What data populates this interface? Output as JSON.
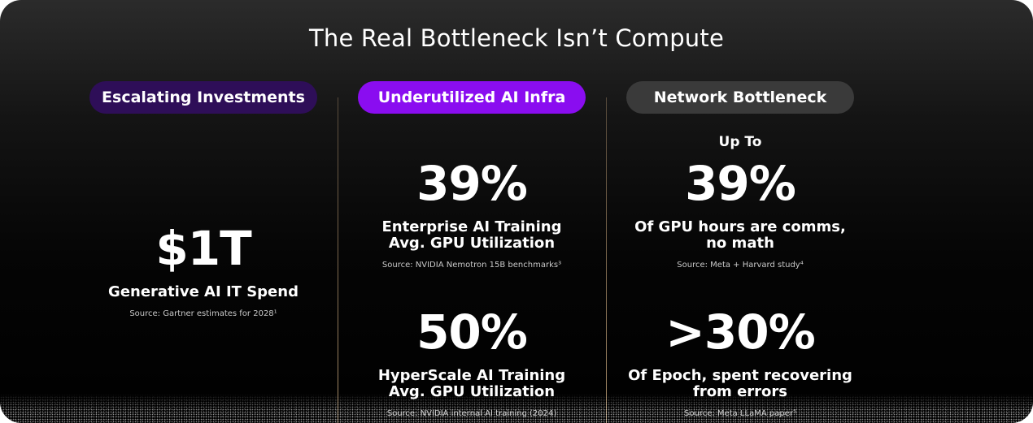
{
  "title": "The Real Bottleneck Isn’t Compute",
  "columns": [
    {
      "pill": "Escalating Investments",
      "stats": [
        {
          "value": "$1T",
          "label": "Generative AI IT Spend",
          "source": "Source: Gartner estimates for 2028¹"
        }
      ]
    },
    {
      "pill": "Underutilized AI Infra",
      "stats": [
        {
          "value": "39%",
          "label_line1": "Enterprise AI Training",
          "label_line2": "Avg. GPU Utilization",
          "source": "Source: NVIDIA Nemotron 15B benchmarks³"
        },
        {
          "value": "50%",
          "label_line1": "HyperScale AI Training",
          "label_line2": "Avg. GPU Utilization",
          "source": "Source: NVIDIA internal AI training (2024)"
        }
      ]
    },
    {
      "pill": "Network Bottleneck",
      "prefix": "Up To",
      "stats": [
        {
          "value": "39%",
          "label_line1": "Of GPU hours are comms,",
          "label_line2": "no math",
          "source": "Source: Meta + Harvard study⁴"
        },
        {
          "value": ">30%",
          "label_line1": "Of Epoch, spent recovering",
          "label_line2": "from errors",
          "source": "Source: Meta LLaMA paper⁵"
        }
      ]
    }
  ],
  "colors": {
    "pill_1": "#2e0e58",
    "pill_2": "#8a0df0",
    "pill_3": "#3a3a3a",
    "background": "#000000",
    "divider": "#b39a78"
  }
}
